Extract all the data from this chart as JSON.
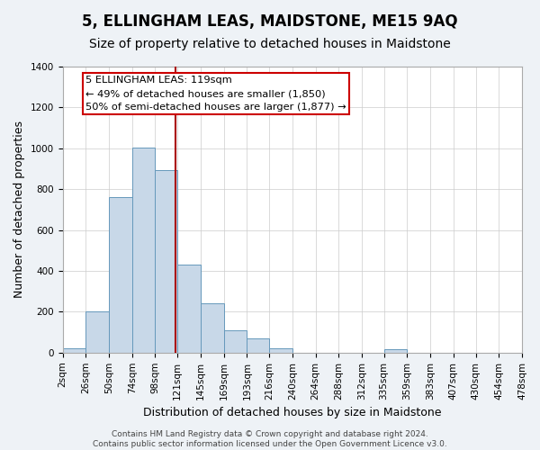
{
  "title": "5, ELLINGHAM LEAS, MAIDSTONE, ME15 9AQ",
  "subtitle": "Size of property relative to detached houses in Maidstone",
  "xlabel": "Distribution of detached houses by size in Maidstone",
  "ylabel": "Number of detached properties",
  "footer_lines": [
    "Contains HM Land Registry data © Crown copyright and database right 2024.",
    "Contains public sector information licensed under the Open Government Licence v3.0."
  ],
  "bin_edges": [
    2,
    26,
    50,
    74,
    98,
    121,
    145,
    169,
    193,
    216,
    240,
    264,
    288,
    312,
    335,
    359,
    383,
    407,
    430,
    454,
    478
  ],
  "bar_heights": [
    20,
    200,
    760,
    1005,
    895,
    430,
    240,
    110,
    70,
    20,
    0,
    0,
    0,
    0,
    15,
    0,
    0,
    0,
    0,
    0
  ],
  "bar_color": "#c8d8e8",
  "bar_edge_color": "#6699bb",
  "vline_x": 119,
  "vline_color": "#aa0000",
  "annotation_line1": "5 ELLINGHAM LEAS: 119sqm",
  "annotation_line2": "← 49% of detached houses are smaller (1,850)",
  "annotation_line3": "50% of semi-detached houses are larger (1,877) →",
  "ylim": [
    0,
    1400
  ],
  "yticks": [
    0,
    200,
    400,
    600,
    800,
    1000,
    1200,
    1400
  ],
  "tick_labels": [
    "2sqm",
    "26sqm",
    "50sqm",
    "74sqm",
    "98sqm",
    "121sqm",
    "145sqm",
    "169sqm",
    "193sqm",
    "216sqm",
    "240sqm",
    "264sqm",
    "288sqm",
    "312sqm",
    "335sqm",
    "359sqm",
    "383sqm",
    "407sqm",
    "430sqm",
    "454sqm",
    "478sqm"
  ],
  "background_color": "#eef2f6",
  "plot_bg_color": "#ffffff",
  "grid_color": "#cccccc",
  "title_fontsize": 12,
  "subtitle_fontsize": 10,
  "axis_label_fontsize": 9,
  "tick_fontsize": 7.5,
  "footer_fontsize": 6.5
}
